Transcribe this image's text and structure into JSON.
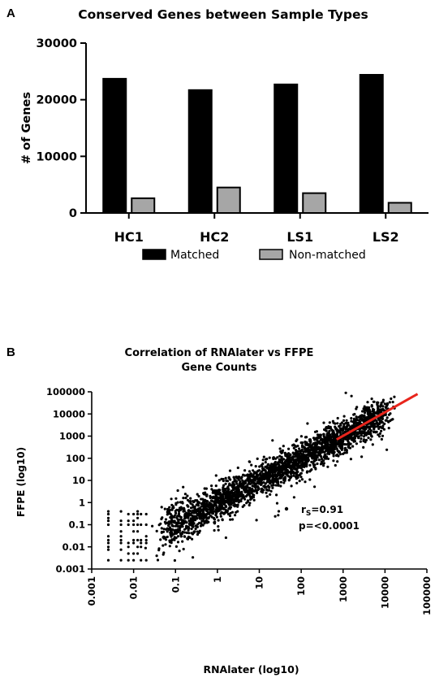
{
  "panel_a": {
    "letter": "A"
  },
  "panel_b": {
    "letter": "B"
  },
  "chart_data": [
    {
      "type": "bar",
      "title": "Conserved Genes between Sample Types",
      "xlabel": "",
      "ylabel": "# of Genes",
      "ylim": [
        0,
        30000
      ],
      "yticks": [
        0,
        10000,
        20000,
        30000
      ],
      "categories": [
        "HC1",
        "HC2",
        "LS1",
        "LS2"
      ],
      "series": [
        {
          "name": "Matched",
          "values": [
            23700,
            21700,
            22700,
            24400
          ],
          "color": "#000000"
        },
        {
          "name": "Non-matched",
          "values": [
            2600,
            4500,
            3500,
            1800
          ],
          "color": "#a6a6a6"
        }
      ],
      "legend_position": "bottom",
      "grid": false
    },
    {
      "type": "scatter",
      "title": [
        "Correlation of RNAlater vs FFPE",
        "Gene Counts"
      ],
      "xlabel": "RNAlater (log10)",
      "ylabel": "FFPE (log10)",
      "xscale": "log",
      "yscale": "log",
      "xlim": [
        0.001,
        100000
      ],
      "ylim": [
        0.001,
        100000
      ],
      "xtick_labels": [
        "0.001",
        "0.01",
        "0.1",
        "1",
        "10",
        "100",
        "1000",
        "10000",
        "100000"
      ],
      "ytick_labels": [
        "0.001",
        "0.01",
        "0.1",
        "1",
        "10",
        "100",
        "1000",
        "10000",
        "100000"
      ],
      "trend_line": {
        "x": [
          700,
          60000
        ],
        "y": [
          700,
          80000
        ],
        "color": "#e8251c"
      },
      "stat_rs_symbol": "r",
      "stat_rs_sub": "S",
      "stat_rs_value": "=0.91",
      "stat_p": "p=<0.0001",
      "point_color": "#000000",
      "grid": false
    }
  ]
}
